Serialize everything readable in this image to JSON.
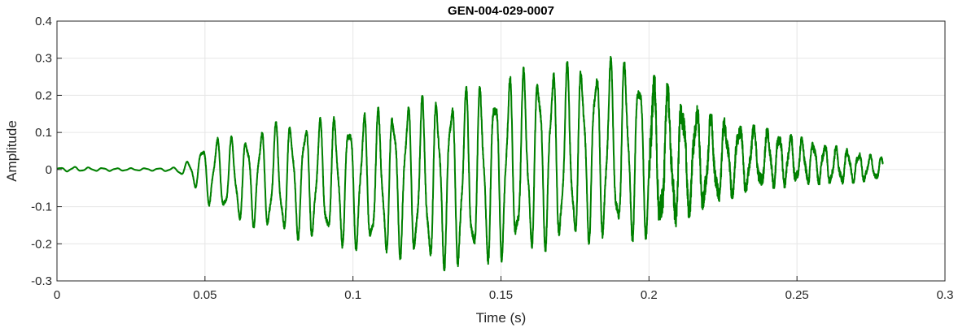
{
  "chart_data": {
    "type": "line",
    "title": "GEN-004-029-0007",
    "xlabel": "Time (s)",
    "ylabel": "Amplitude",
    "xlim": [
      0,
      0.3
    ],
    "ylim": [
      -0.3,
      0.4
    ],
    "xticks": [
      0,
      0.05,
      0.1,
      0.15,
      0.2,
      0.25,
      0.3
    ],
    "xtick_labels": [
      "0",
      "0.05",
      "0.1",
      "0.15",
      "0.2",
      "0.25",
      "0.3"
    ],
    "yticks": [
      -0.3,
      -0.2,
      -0.1,
      0,
      0.1,
      0.2,
      0.3,
      0.4
    ],
    "ytick_labels": [
      "-0.3",
      "-0.2",
      "-0.1",
      "0",
      "0.1",
      "0.2",
      "0.3",
      "0.4"
    ],
    "grid": true,
    "line_color": "#008000",
    "series": [
      {
        "x": [
          0,
          0.005,
          0.01,
          0.015,
          0.02,
          0.025,
          0.03,
          0.035,
          0.04,
          0.043,
          0.046,
          0.05,
          0.055,
          0.06,
          0.065,
          0.07,
          0.075,
          0.08,
          0.085,
          0.09,
          0.095,
          0.1,
          0.105,
          0.11,
          0.115,
          0.12,
          0.125,
          0.13,
          0.135,
          0.14,
          0.145,
          0.15,
          0.155,
          0.16,
          0.165,
          0.17,
          0.175,
          0.18,
          0.185,
          0.19,
          0.195,
          0.2,
          0.205,
          0.21,
          0.215,
          0.22,
          0.225,
          0.23,
          0.235,
          0.24,
          0.245,
          0.25,
          0.255,
          0.26,
          0.265,
          0.27,
          0.275,
          0.279
        ],
        "upper": [
          0.005,
          0.008,
          0.006,
          0.005,
          0.004,
          0.004,
          0.004,
          0.004,
          0.006,
          0.015,
          0.04,
          0.08,
          0.09,
          0.09,
          0.1,
          0.12,
          0.13,
          0.135,
          0.14,
          0.14,
          0.15,
          0.155,
          0.16,
          0.17,
          0.19,
          0.195,
          0.2,
          0.21,
          0.22,
          0.23,
          0.24,
          0.25,
          0.27,
          0.28,
          0.285,
          0.29,
          0.29,
          0.3,
          0.3,
          0.31,
          0.3,
          0.26,
          0.24,
          0.2,
          0.18,
          0.15,
          0.14,
          0.13,
          0.12,
          0.11,
          0.1,
          0.09,
          0.08,
          0.07,
          0.06,
          0.05,
          0.04,
          0.035
        ],
        "lower": [
          -0.004,
          -0.006,
          -0.004,
          -0.004,
          -0.004,
          -0.003,
          -0.003,
          -0.004,
          -0.006,
          -0.02,
          -0.04,
          -0.09,
          -0.12,
          -0.14,
          -0.15,
          -0.17,
          -0.18,
          -0.19,
          -0.19,
          -0.2,
          -0.21,
          -0.22,
          -0.23,
          -0.24,
          -0.24,
          -0.25,
          -0.27,
          -0.27,
          -0.28,
          -0.27,
          -0.26,
          -0.25,
          -0.24,
          -0.23,
          -0.22,
          -0.22,
          -0.21,
          -0.2,
          -0.2,
          -0.2,
          -0.2,
          -0.19,
          -0.17,
          -0.15,
          -0.12,
          -0.11,
          -0.09,
          -0.07,
          -0.06,
          -0.05,
          -0.05,
          -0.04,
          -0.04,
          -0.04,
          -0.04,
          -0.035,
          -0.03,
          -0.03
        ]
      }
    ]
  }
}
